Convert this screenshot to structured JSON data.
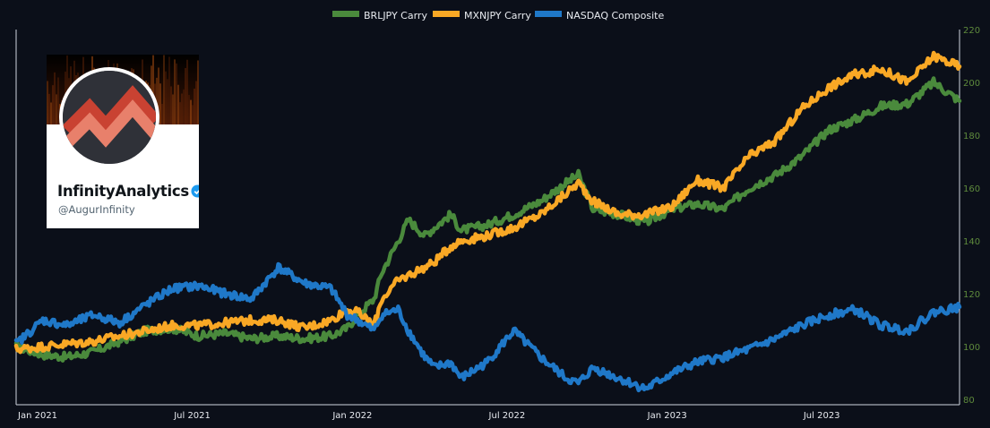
{
  "colors": {
    "background": "#0b0f19",
    "axis": "#cfd6e0",
    "right_axis_labels": "#5e8a3c",
    "BRLJPY Carry": "#4a8a3c",
    "MXNJPY Carry": "#f9a825",
    "NASDAQ Composite": "#1f78c8"
  },
  "profile": {
    "name": "InfinityAnalytics",
    "handle": "@AugurInfinity",
    "verified_icon": "verified-badge-icon",
    "avatar_icon": "zigzag-chart-logo"
  },
  "chart_data": {
    "type": "line",
    "legend": {
      "position": "top-center",
      "entries": [
        "BRLJPY Carry",
        "MXNJPY Carry",
        "NASDAQ Composite"
      ]
    },
    "x_ticks": [
      "Jan 2021",
      "Jul 2021",
      "Jan 2022",
      "Jul 2022",
      "Jan 2023",
      "Jul 2023"
    ],
    "x_tick_dates": [
      "2021-01-01",
      "2021-07-01",
      "2022-01-01",
      "2022-07-01",
      "2023-01-01",
      "2023-07-01"
    ],
    "x_range": [
      "2021-01-01",
      "2023-12-31"
    ],
    "y_axis": {
      "side": "right",
      "range": [
        78,
        220
      ],
      "ticks": [
        80,
        100,
        120,
        140,
        160,
        180,
        200,
        220
      ]
    },
    "grid": false,
    "series": [
      {
        "name": "BRLJPY Carry",
        "points": [
          [
            "2021-01-01",
            100
          ],
          [
            "2021-02-01",
            97
          ],
          [
            "2021-03-01",
            96
          ],
          [
            "2021-04-01",
            98
          ],
          [
            "2021-05-01",
            102
          ],
          [
            "2021-06-01",
            106
          ],
          [
            "2021-07-01",
            107
          ],
          [
            "2021-08-01",
            104
          ],
          [
            "2021-09-01",
            105
          ],
          [
            "2021-10-01",
            103
          ],
          [
            "2021-11-01",
            104
          ],
          [
            "2021-12-01",
            103
          ],
          [
            "2022-01-01",
            104
          ],
          [
            "2022-01-20",
            107
          ],
          [
            "2022-02-01",
            112
          ],
          [
            "2022-02-20",
            118
          ],
          [
            "2022-03-01",
            128
          ],
          [
            "2022-03-20",
            140
          ],
          [
            "2022-04-01",
            148
          ],
          [
            "2022-04-20",
            142
          ],
          [
            "2022-05-01",
            145
          ],
          [
            "2022-05-20",
            150
          ],
          [
            "2022-06-01",
            144
          ],
          [
            "2022-07-01",
            146
          ],
          [
            "2022-08-01",
            150
          ],
          [
            "2022-09-01",
            155
          ],
          [
            "2022-10-01",
            162
          ],
          [
            "2022-10-15",
            165
          ],
          [
            "2022-11-01",
            152
          ],
          [
            "2022-12-01",
            150
          ],
          [
            "2023-01-01",
            147
          ],
          [
            "2023-02-01",
            152
          ],
          [
            "2023-03-01",
            154
          ],
          [
            "2023-04-01",
            152
          ],
          [
            "2023-05-01",
            160
          ],
          [
            "2023-06-01",
            165
          ],
          [
            "2023-07-01",
            172
          ],
          [
            "2023-08-01",
            182
          ],
          [
            "2023-09-01",
            186
          ],
          [
            "2023-10-01",
            191
          ],
          [
            "2023-11-01",
            192
          ],
          [
            "2023-12-01",
            200
          ],
          [
            "2023-12-31",
            193
          ]
        ]
      },
      {
        "name": "MXNJPY Carry",
        "points": [
          [
            "2021-01-01",
            99
          ],
          [
            "2021-02-01",
            100
          ],
          [
            "2021-03-01",
            101
          ],
          [
            "2021-04-01",
            102
          ],
          [
            "2021-05-01",
            104
          ],
          [
            "2021-06-01",
            106
          ],
          [
            "2021-07-01",
            108
          ],
          [
            "2021-08-01",
            108
          ],
          [
            "2021-09-01",
            109
          ],
          [
            "2021-10-01",
            110
          ],
          [
            "2021-11-01",
            110
          ],
          [
            "2021-12-01",
            107
          ],
          [
            "2022-01-01",
            110
          ],
          [
            "2022-01-20",
            114
          ],
          [
            "2022-02-01",
            113
          ],
          [
            "2022-02-20",
            108
          ],
          [
            "2022-03-01",
            118
          ],
          [
            "2022-03-20",
            125
          ],
          [
            "2022-04-01",
            127
          ],
          [
            "2022-04-20",
            130
          ],
          [
            "2022-05-01",
            132
          ],
          [
            "2022-05-20",
            138
          ],
          [
            "2022-06-01",
            140
          ],
          [
            "2022-07-01",
            142
          ],
          [
            "2022-08-01",
            145
          ],
          [
            "2022-09-01",
            150
          ],
          [
            "2022-10-01",
            158
          ],
          [
            "2022-10-15",
            162
          ],
          [
            "2022-11-01",
            155
          ],
          [
            "2022-12-01",
            150
          ],
          [
            "2023-01-01",
            150
          ],
          [
            "2023-02-01",
            153
          ],
          [
            "2023-03-01",
            163
          ],
          [
            "2023-04-01",
            160
          ],
          [
            "2023-05-01",
            172
          ],
          [
            "2023-06-01",
            178
          ],
          [
            "2023-07-01",
            190
          ],
          [
            "2023-08-01",
            198
          ],
          [
            "2023-09-01",
            203
          ],
          [
            "2023-10-01",
            205
          ],
          [
            "2023-11-01",
            200
          ],
          [
            "2023-12-01",
            210
          ],
          [
            "2023-12-31",
            206
          ]
        ]
      },
      {
        "name": "NASDAQ Composite",
        "points": [
          [
            "2021-01-01",
            101
          ],
          [
            "2021-02-01",
            110
          ],
          [
            "2021-03-01",
            108
          ],
          [
            "2021-04-01",
            112
          ],
          [
            "2021-05-01",
            109
          ],
          [
            "2021-06-01",
            116
          ],
          [
            "2021-07-01",
            122
          ],
          [
            "2021-08-01",
            123
          ],
          [
            "2021-09-01",
            120
          ],
          [
            "2021-10-01",
            118
          ],
          [
            "2021-11-01",
            130
          ],
          [
            "2021-12-01",
            124
          ],
          [
            "2022-01-01",
            122
          ],
          [
            "2022-01-20",
            112
          ],
          [
            "2022-02-01",
            110
          ],
          [
            "2022-02-20",
            106
          ],
          [
            "2022-03-01",
            112
          ],
          [
            "2022-03-20",
            114
          ],
          [
            "2022-04-01",
            106
          ],
          [
            "2022-04-20",
            96
          ],
          [
            "2022-05-01",
            92
          ],
          [
            "2022-05-20",
            94
          ],
          [
            "2022-06-01",
            88
          ],
          [
            "2022-07-01",
            94
          ],
          [
            "2022-08-01",
            106
          ],
          [
            "2022-09-01",
            96
          ],
          [
            "2022-10-01",
            88
          ],
          [
            "2022-10-15",
            86
          ],
          [
            "2022-11-01",
            92
          ],
          [
            "2022-12-01",
            88
          ],
          [
            "2023-01-01",
            84
          ],
          [
            "2023-02-01",
            90
          ],
          [
            "2023-03-01",
            94
          ],
          [
            "2023-04-01",
            96
          ],
          [
            "2023-05-01",
            99
          ],
          [
            "2023-06-01",
            103
          ],
          [
            "2023-07-01",
            108
          ],
          [
            "2023-08-01",
            112
          ],
          [
            "2023-09-01",
            114
          ],
          [
            "2023-10-01",
            108
          ],
          [
            "2023-11-01",
            106
          ],
          [
            "2023-12-01",
            113
          ],
          [
            "2023-12-31",
            115
          ]
        ]
      }
    ]
  }
}
